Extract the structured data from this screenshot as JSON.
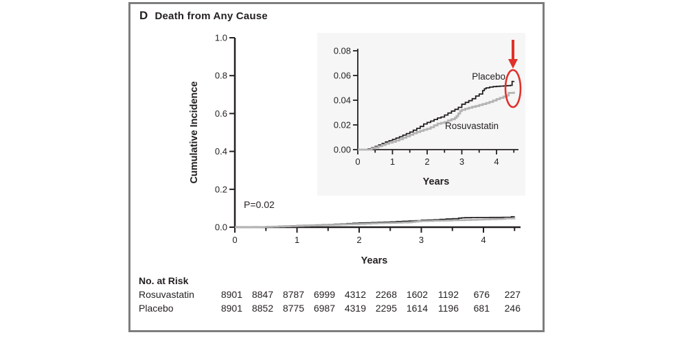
{
  "figure": {
    "panel_letter": "D",
    "title": "Death from Any Cause"
  },
  "colors": {
    "ink": "#231f20",
    "placebo_line": "#231f20",
    "rosuvastatin_line": "#b4b4b4",
    "highlight_red": "#e0312a",
    "inset_bg": "#f6f6f6",
    "frame_gray": "#7d7d7d"
  },
  "chart_data": {
    "type": "line",
    "panel": "D",
    "title": "Death from Any Cause",
    "p_value": "P=0.02",
    "legend_position": "inline-labels",
    "grid": false,
    "main_axes": {
      "xlabel": "Years",
      "ylabel": "Cumulative Incidence",
      "xlim": [
        0,
        4.6
      ],
      "ylim": [
        0,
        1.0
      ],
      "xticks": [
        0,
        1,
        2,
        3,
        4
      ],
      "xtick_labels": [
        "0",
        "1",
        "2",
        "3",
        "4"
      ],
      "xminor": [
        0.5,
        1.5,
        2.5,
        3.5,
        4.5
      ],
      "yticks": [
        0,
        0.2,
        0.4,
        0.6,
        0.8,
        1.0
      ],
      "ytick_labels": [
        "0.0",
        "0.2",
        "0.4",
        "0.6",
        "0.8",
        "1.0"
      ]
    },
    "inset_axes": {
      "xlabel": "Years",
      "xlim": [
        0,
        4.65
      ],
      "ylim": [
        0,
        0.08
      ],
      "xticks": [
        0,
        1,
        2,
        3,
        4
      ],
      "xtick_labels": [
        "0",
        "1",
        "2",
        "3",
        "4"
      ],
      "xminor": [
        0.5,
        1.5,
        2.5,
        3.5,
        4.5
      ],
      "yticks": [
        0,
        0.02,
        0.04,
        0.06,
        0.08
      ],
      "ytick_labels": [
        "0.00",
        "0.02",
        "0.04",
        "0.06",
        "0.08"
      ]
    },
    "series": [
      {
        "name": "Placebo",
        "color": "#231f20",
        "points": [
          [
            0,
            0
          ],
          [
            0.25,
            0
          ],
          [
            0.3,
            0.0006
          ],
          [
            0.4,
            0.0016
          ],
          [
            0.5,
            0.0026
          ],
          [
            0.6,
            0.0038
          ],
          [
            0.7,
            0.005
          ],
          [
            0.8,
            0.0062
          ],
          [
            0.9,
            0.0072
          ],
          [
            1.0,
            0.0082
          ],
          [
            1.1,
            0.0094
          ],
          [
            1.2,
            0.0104
          ],
          [
            1.3,
            0.0117
          ],
          [
            1.4,
            0.013
          ],
          [
            1.5,
            0.0142
          ],
          [
            1.6,
            0.0157
          ],
          [
            1.7,
            0.0172
          ],
          [
            1.8,
            0.0188
          ],
          [
            1.9,
            0.0208
          ],
          [
            2.0,
            0.022
          ],
          [
            2.1,
            0.0231
          ],
          [
            2.2,
            0.0244
          ],
          [
            2.3,
            0.0256
          ],
          [
            2.4,
            0.0264
          ],
          [
            2.5,
            0.028
          ],
          [
            2.6,
            0.0296
          ],
          [
            2.7,
            0.0312
          ],
          [
            2.8,
            0.0326
          ],
          [
            2.9,
            0.0342
          ],
          [
            3.0,
            0.0368
          ],
          [
            3.1,
            0.0382
          ],
          [
            3.2,
            0.0396
          ],
          [
            3.3,
            0.0412
          ],
          [
            3.4,
            0.0434
          ],
          [
            3.5,
            0.045
          ],
          [
            3.6,
            0.0478
          ],
          [
            3.65,
            0.0492
          ],
          [
            3.7,
            0.05
          ],
          [
            3.8,
            0.0506
          ],
          [
            3.9,
            0.051
          ],
          [
            4.0,
            0.0512
          ],
          [
            4.1,
            0.0514
          ],
          [
            4.2,
            0.0516
          ],
          [
            4.3,
            0.0518
          ],
          [
            4.4,
            0.052
          ],
          [
            4.45,
            0.0552
          ],
          [
            4.5,
            0.0554
          ]
        ]
      },
      {
        "name": "Rosuvastatin",
        "color": "#b4b4b4",
        "points": [
          [
            0,
            0
          ],
          [
            0.3,
            0
          ],
          [
            0.4,
            0.001
          ],
          [
            0.5,
            0.0018
          ],
          [
            0.6,
            0.0028
          ],
          [
            0.7,
            0.0038
          ],
          [
            0.8,
            0.0048
          ],
          [
            0.9,
            0.0056
          ],
          [
            1.0,
            0.0064
          ],
          [
            1.1,
            0.0074
          ],
          [
            1.2,
            0.0084
          ],
          [
            1.3,
            0.0096
          ],
          [
            1.4,
            0.0108
          ],
          [
            1.5,
            0.012
          ],
          [
            1.6,
            0.0132
          ],
          [
            1.7,
            0.0142
          ],
          [
            1.8,
            0.0152
          ],
          [
            1.9,
            0.0161
          ],
          [
            2.0,
            0.0169
          ],
          [
            2.1,
            0.0181
          ],
          [
            2.2,
            0.0196
          ],
          [
            2.3,
            0.021
          ],
          [
            2.4,
            0.0216
          ],
          [
            2.5,
            0.0223
          ],
          [
            2.6,
            0.0236
          ],
          [
            2.7,
            0.0246
          ],
          [
            2.8,
            0.0258
          ],
          [
            2.85,
            0.0272
          ],
          [
            2.9,
            0.0292
          ],
          [
            2.95,
            0.0312
          ],
          [
            3.0,
            0.0322
          ],
          [
            3.1,
            0.0331
          ],
          [
            3.2,
            0.0339
          ],
          [
            3.3,
            0.0346
          ],
          [
            3.4,
            0.0353
          ],
          [
            3.5,
            0.0361
          ],
          [
            3.6,
            0.0369
          ],
          [
            3.7,
            0.0377
          ],
          [
            3.8,
            0.0386
          ],
          [
            3.9,
            0.0397
          ],
          [
            4.0,
            0.0409
          ],
          [
            4.1,
            0.0419
          ],
          [
            4.2,
            0.0429
          ],
          [
            4.3,
            0.0439
          ],
          [
            4.35,
            0.0459
          ],
          [
            4.5,
            0.0469
          ]
        ]
      }
    ],
    "highlight": {
      "shapes": "down-arrow and ellipse circling curve ends",
      "color": "#e0312a"
    },
    "no_at_risk": {
      "title": "No. at Risk",
      "rows": [
        {
          "label": "Rosuvastatin",
          "values": [
            "8901",
            "8847",
            "8787",
            "6999",
            "4312",
            "2268",
            "1602",
            "1192",
            "676",
            "227"
          ]
        },
        {
          "label": "Placebo",
          "values": [
            "8901",
            "8852",
            "8775",
            "6987",
            "4319",
            "2295",
            "1614",
            "1196",
            "681",
            "246"
          ]
        }
      ]
    }
  }
}
